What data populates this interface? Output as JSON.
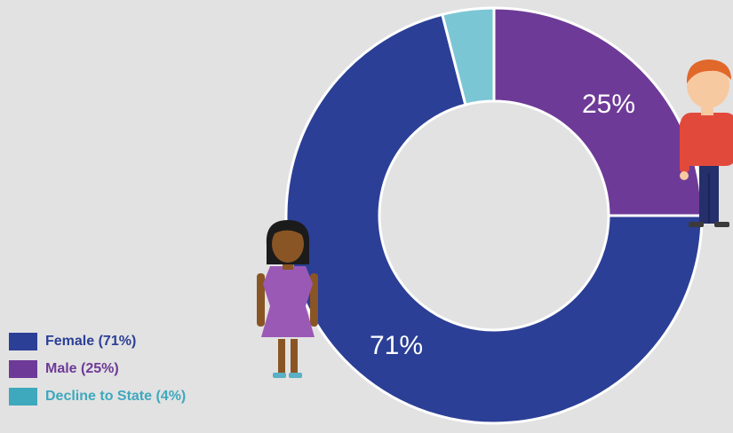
{
  "chart_data": {
    "type": "pie",
    "categories": [
      "Female",
      "Male",
      "Decline to State"
    ],
    "values": [
      71,
      25,
      4
    ],
    "data_labels": [
      "71%",
      "25%",
      ""
    ],
    "colors": [
      "#2b3f96",
      "#6e3a97",
      "#7bc6d5"
    ],
    "title": "",
    "donut": true
  },
  "legend": {
    "items": [
      {
        "label": "Female (71%)",
        "color": "#2b3f96"
      },
      {
        "label": "Male (25%)",
        "color": "#6e3a97"
      },
      {
        "label": "Decline to State (4%)",
        "color": "#3ea8bd"
      }
    ]
  },
  "illustrations": [
    "female-figure-icon",
    "male-figure-icon"
  ]
}
